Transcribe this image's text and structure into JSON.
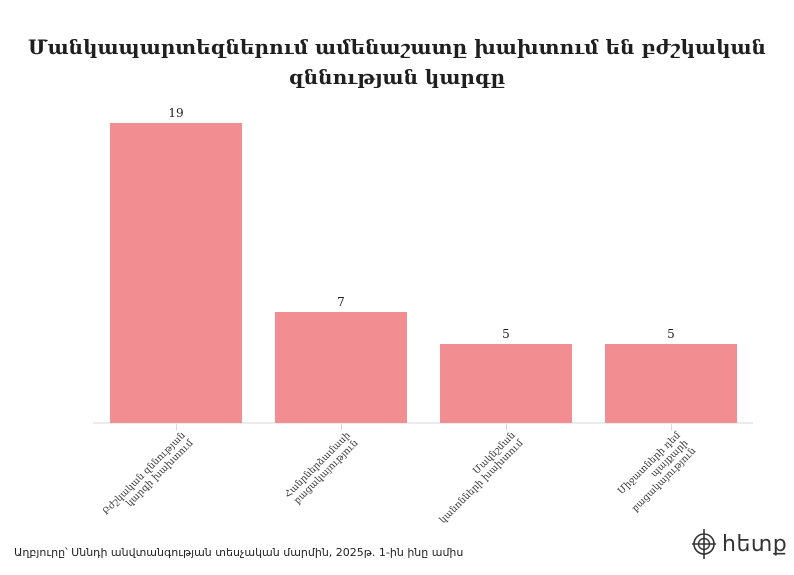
{
  "title": "Մանկապարտեզներում ամենաշատը խախտում են բժշկական զննության կարգը",
  "source": "Աղբյուրը՝ Սննդի անվտանգության տեսչական մարմին, 2025թ. 1-ին ինը ամիս",
  "logo": {
    "text": "հետք",
    "icon": "crosshair-logo-icon"
  },
  "colors": {
    "bar": "#f28e92",
    "axis": "#ebebeb",
    "text": "#222222"
  },
  "chart_data": {
    "type": "bar",
    "title": "Մանկապարտեզներում ամենաշատը խախտում են բժշկական զննության կարգը",
    "xlabel": "",
    "ylabel": "",
    "categories": [
      "Բժշկական զննության կարգի խախտում",
      "Հանրներձամասի բացակայություն",
      "Մակնշման կանոնների խախտում",
      "Միջատների դեմ պայքարի բացակայություն"
    ],
    "category_lines": [
      "Բժշկական զննության\nկարգի խախտում",
      "Հանրներձամասի\nբացակայություն",
      "Մակնշման\nկանոնների խախտում",
      "Միջատների դեմ\nպայքարի\nբացակայություն"
    ],
    "values": [
      19,
      7,
      5,
      5
    ],
    "value_labels": [
      "19",
      "7",
      "5",
      "5"
    ],
    "ylim": [
      0,
      19
    ],
    "grid": false,
    "legend": null
  }
}
